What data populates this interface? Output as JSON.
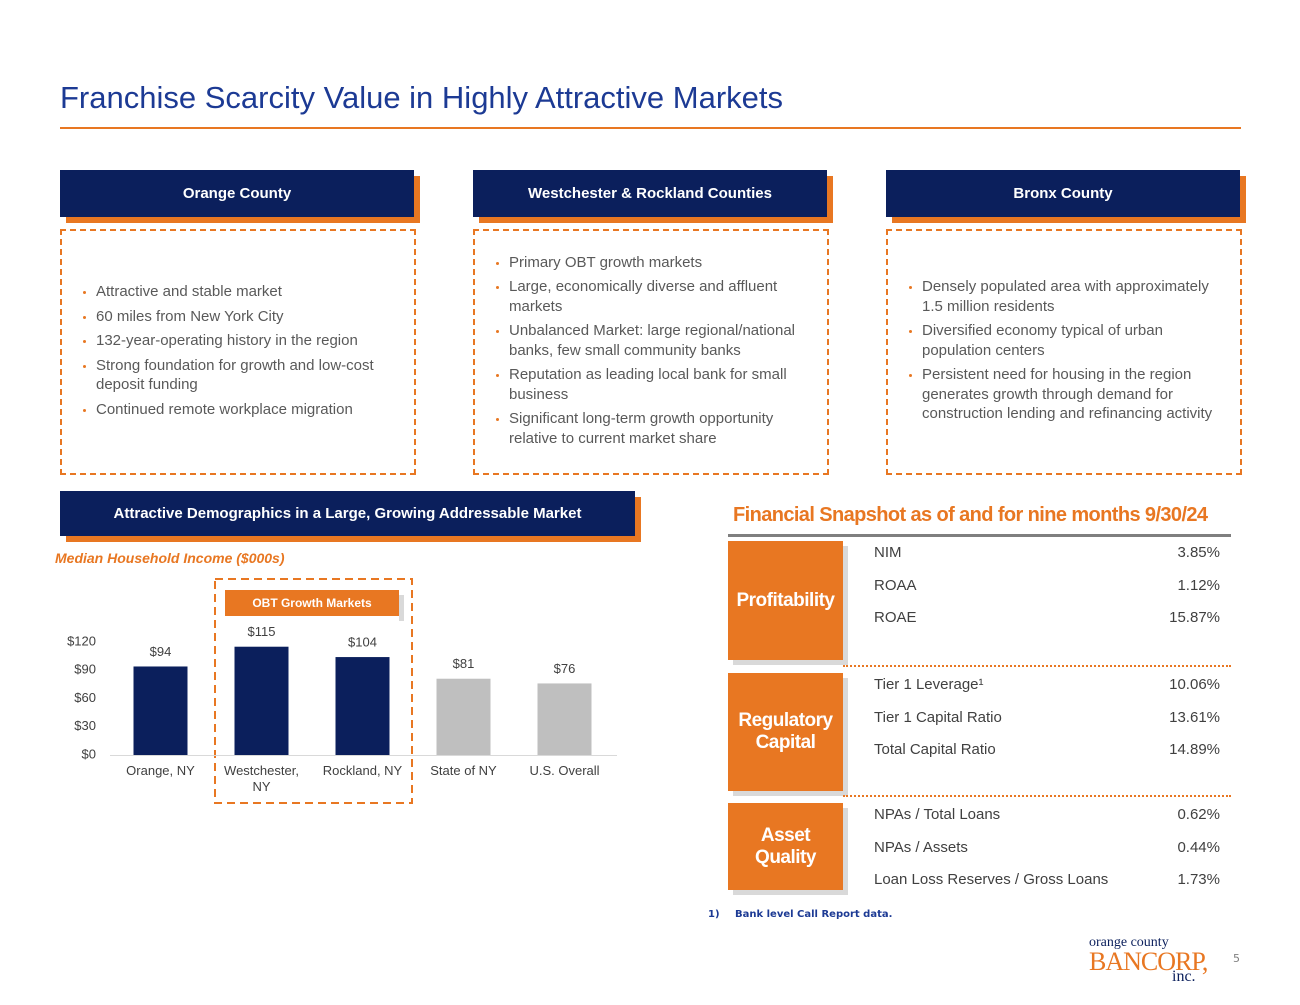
{
  "header": {
    "title": "Franchise Scarcity Value in Highly Attractive Markets"
  },
  "panels": [
    {
      "title": "Orange County",
      "bullets": [
        "Attractive and stable market",
        "60 miles from New York City",
        "132-year-operating history in the region",
        "Strong foundation for growth and low-cost deposit funding",
        "Continued remote workplace migration"
      ]
    },
    {
      "title": "Westchester & Rockland Counties",
      "bullets": [
        "Primary OBT growth markets",
        "Large, economically diverse and affluent markets",
        "Unbalanced Market: large regional/national banks, few small community banks",
        "Reputation as leading local bank for small business",
        "Significant long-term growth opportunity relative to current market share"
      ]
    },
    {
      "title": "Bronx County",
      "bullets": [
        "Densely populated area with approximately 1.5 million residents",
        "Diversified economy typical of urban population centers",
        "Persistent need for housing in the region generates growth through demand for construction lending and refinancing activity"
      ]
    }
  ],
  "chart_data": {
    "type": "bar",
    "title": "Attractive Demographics in a Large, Growing Addressable Market",
    "subtitle": "Median Household Income ($000s)",
    "annotation": "OBT Growth Markets",
    "categories": [
      "Orange, NY",
      "Westchester, NY",
      "Rockland, NY",
      "State of NY",
      "U.S. Overall"
    ],
    "values": [
      94,
      115,
      104,
      81,
      76
    ],
    "value_labels": [
      "$94",
      "$115",
      "$104",
      "$81",
      "$76"
    ],
    "colors": [
      "#0b1f5c",
      "#0b1f5c",
      "#0b1f5c",
      "#bfbfbf",
      "#bfbfbf"
    ],
    "ylim": [
      0,
      120
    ],
    "yticks": [
      {
        "value": 0,
        "label": "$0"
      },
      {
        "value": 30,
        "label": "$30"
      },
      {
        "value": 60,
        "label": "$60"
      },
      {
        "value": 90,
        "label": "$90"
      },
      {
        "value": 120,
        "label": "$120"
      }
    ]
  },
  "snapshot": {
    "title": "Financial Snapshot as of and for nine months 9/30/24",
    "groups": [
      {
        "label": "Profitability",
        "rows": [
          [
            "NIM",
            "3.85%"
          ],
          [
            "ROAA",
            "1.12%"
          ],
          [
            "ROAE",
            "15.87%"
          ]
        ]
      },
      {
        "label": "Regulatory Capital",
        "rows": [
          [
            "Tier 1 Leverage¹",
            "10.06%"
          ],
          [
            "Tier 1 Capital Ratio",
            "13.61%"
          ],
          [
            "Total Capital Ratio",
            "14.89%"
          ]
        ]
      },
      {
        "label": "Asset Quality",
        "rows": [
          [
            "NPAs / Total Loans",
            "0.62%"
          ],
          [
            "NPAs / Assets",
            "0.44%"
          ],
          [
            "Loan Loss Reserves / Gross Loans",
            "1.73%"
          ]
        ]
      }
    ],
    "footnote_marker": "1)",
    "footnote": "Bank level Call Report data."
  },
  "footer": {
    "page": "5",
    "logo": [
      "orange county",
      "BANCORP,",
      "inc."
    ]
  }
}
